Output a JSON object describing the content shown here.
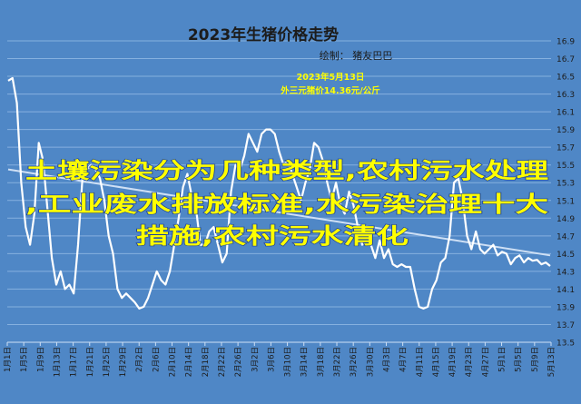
{
  "colors": {
    "background": "#4f87c6",
    "line": "#ffffff",
    "gridline": "#86b0df",
    "trendline": "#cfe0f5",
    "annotation": "#ffff00",
    "overlay_fill": "#ffff00",
    "overlay_stroke": "#1a3e9a"
  },
  "chart_data": {
    "type": "line",
    "title": "2023年生猪价格走势",
    "subtitle": "绘制：  猪友巴巴",
    "annotation": {
      "line1": "2023年5月13日",
      "line2": "外三元猪价14.36元/公斤"
    },
    "overlay_text": {
      "line1": "土壤污染分为几种类型,农村污水处理",
      "line2": ",工业废水排放标准,水污染治理十大",
      "line3": "措施,农村污水清化"
    },
    "y_axis": {
      "min": 13.7,
      "max": 16.9,
      "ticks": [
        "16.9",
        "16.7",
        "16.5",
        "16.3",
        "16.1",
        "15.9",
        "15.7",
        "15.5",
        "15.3",
        "15.1",
        "14.9",
        "14.7",
        "14.5",
        "14.3",
        "14.1",
        "13.9",
        "13.7",
        "13.5"
      ]
    },
    "x_labels": [
      "1月1日",
      "1月5日",
      "1月9日",
      "1月13日",
      "1月17日",
      "1月21日",
      "1月25日",
      "1月29日",
      "2月2日",
      "2月6日",
      "2月10日",
      "2月14日",
      "2月18日",
      "2月22日",
      "2月26日",
      "3月2日",
      "3月6日",
      "3月10日",
      "3月14日",
      "3月18日",
      "3月22日",
      "3月26日",
      "3月30日",
      "4月3日",
      "4月7日",
      "4月11日",
      "4月15日",
      "4月19日",
      "4月23日",
      "4月27日",
      "5月1日",
      "5月5日",
      "5月9日",
      "5月13日"
    ],
    "series": [
      {
        "values": [
          16.45,
          16.48,
          16.2,
          15.3,
          14.8,
          14.6,
          14.95,
          15.75,
          15.55,
          15.0,
          14.45,
          14.15,
          14.3,
          14.1,
          14.15,
          14.05,
          14.6,
          15.35,
          15.45,
          15.5,
          15.45,
          15.35,
          15.1,
          14.7,
          14.5,
          14.1,
          14.0,
          14.05,
          14.0,
          13.95,
          13.88,
          13.9,
          14.0,
          14.15,
          14.3,
          14.2,
          14.15,
          14.3,
          14.6,
          14.9,
          15.25,
          15.4,
          15.15,
          15.0,
          14.6,
          14.6,
          14.75,
          14.8,
          14.6,
          14.4,
          14.5,
          15.2,
          15.5,
          15.45,
          15.6,
          15.85,
          15.75,
          15.65,
          15.85,
          15.9,
          15.9,
          15.85,
          15.65,
          15.5,
          15.55,
          15.4,
          15.25,
          15.1,
          15.3,
          15.45,
          15.75,
          15.7,
          15.55,
          15.3,
          15.1,
          15.3,
          15.05,
          14.95,
          15.2,
          15.05,
          14.8,
          14.6,
          14.7,
          14.6,
          14.45,
          14.65,
          14.45,
          14.55,
          14.38,
          14.35,
          14.38,
          14.35,
          14.35,
          14.1,
          13.9,
          13.88,
          13.9,
          14.1,
          14.2,
          14.4,
          14.45,
          14.7,
          15.3,
          15.35,
          15.1,
          14.7,
          14.55,
          14.75,
          14.55,
          14.5,
          14.55,
          14.6,
          14.48,
          14.52,
          14.5,
          14.38,
          14.45,
          14.48,
          14.4,
          14.45,
          14.42,
          14.43,
          14.38,
          14.4,
          14.36
        ]
      }
    ],
    "trendline": {
      "start": 15.45,
      "end": 14.48
    }
  }
}
